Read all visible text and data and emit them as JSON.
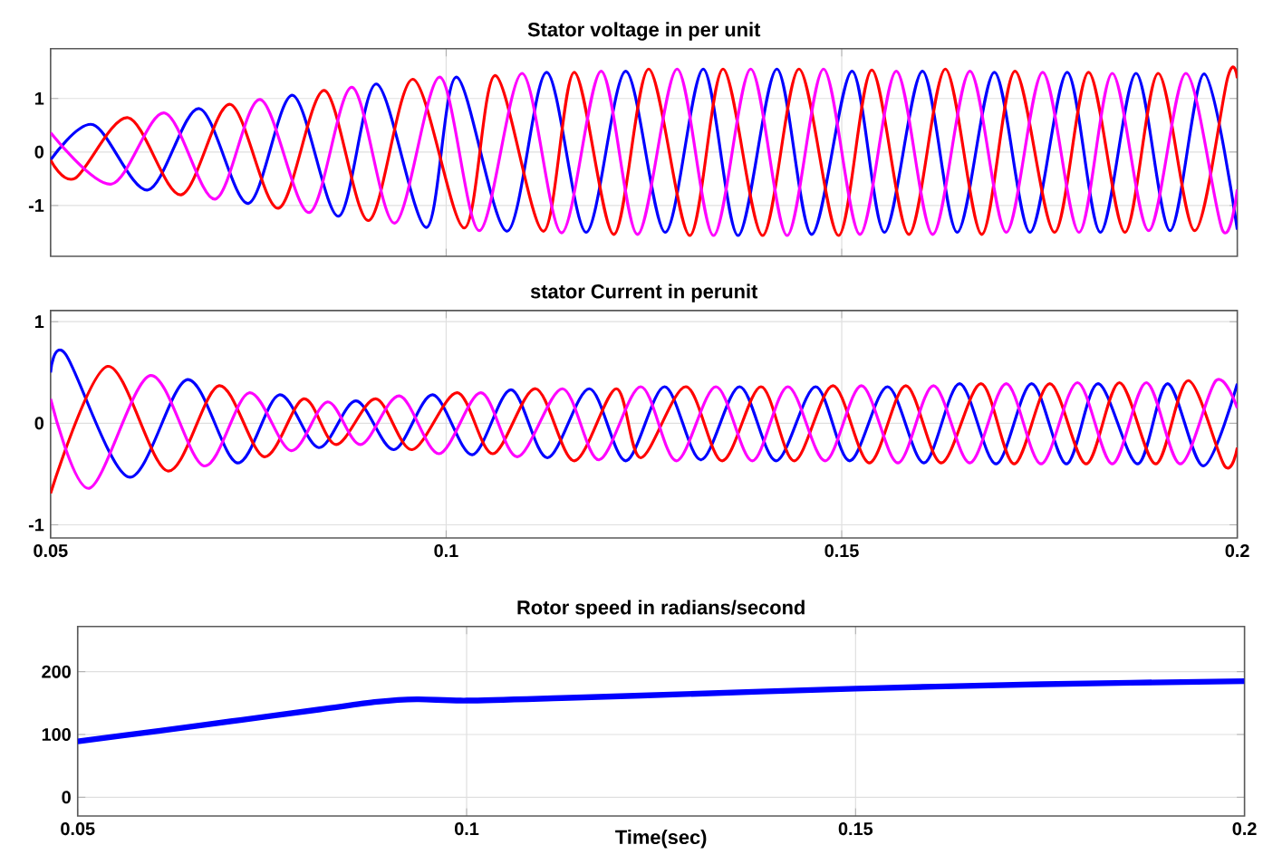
{
  "chart_data": [
    {
      "type": "line",
      "title": "Stator voltage in per unit",
      "xlim": [
        0.05,
        0.2
      ],
      "ylim": [
        -1.95,
        1.93
      ],
      "xticks": [
        0.05,
        0.1,
        0.15,
        0.2
      ],
      "yticks": [
        -1,
        0,
        1
      ],
      "grid": true,
      "tick_labels": "y",
      "series": [
        {
          "color": "#0000ff",
          "x": [
            0.05,
            0.0554,
            0.0623,
            0.0688,
            0.075,
            0.0806,
            0.0864,
            0.0912,
            0.0975,
            0.1013,
            0.1077,
            0.1127,
            0.1177,
            0.1227,
            0.1277,
            0.1325,
            0.1369,
            0.1418,
            0.1462,
            0.1513,
            0.1554,
            0.1602,
            0.1646,
            0.1693,
            0.1738,
            0.1785,
            0.1827,
            0.1872,
            0.1915,
            0.1958,
            0.2
          ],
          "values": [
            -0.15,
            0.51,
            -0.71,
            0.81,
            -0.96,
            1.06,
            -1.2,
            1.27,
            -1.41,
            1.4,
            -1.48,
            1.49,
            -1.5,
            1.51,
            -1.5,
            1.55,
            -1.56,
            1.55,
            -1.54,
            1.51,
            -1.5,
            1.51,
            -1.5,
            1.49,
            -1.5,
            1.49,
            -1.5,
            1.47,
            -1.47,
            1.46,
            -1.45
          ]
        },
        {
          "color": "#ff0000",
          "x": [
            0.05,
            0.0531,
            0.0598,
            0.0665,
            0.0727,
            0.0788,
            0.0846,
            0.0902,
            0.0958,
            0.1023,
            0.1062,
            0.1123,
            0.1162,
            0.1212,
            0.1256,
            0.1308,
            0.135,
            0.14,
            0.1446,
            0.1496,
            0.1538,
            0.1585,
            0.1631,
            0.1677,
            0.1719,
            0.1769,
            0.1812,
            0.1858,
            0.19,
            0.1946,
            0.1988,
            0.2
          ],
          "values": [
            -0.15,
            -0.49,
            0.64,
            -0.8,
            0.89,
            -1.05,
            1.15,
            -1.28,
            1.36,
            -1.42,
            1.43,
            -1.48,
            1.49,
            -1.54,
            1.55,
            -1.56,
            1.55,
            -1.56,
            1.55,
            -1.56,
            1.53,
            -1.54,
            1.55,
            -1.54,
            1.51,
            -1.5,
            1.49,
            -1.5,
            1.47,
            -1.47,
            1.4,
            1.38
          ]
        },
        {
          "color": "#ff00ff",
          "x": [
            0.05,
            0.0577,
            0.0644,
            0.0708,
            0.0765,
            0.0827,
            0.0881,
            0.0935,
            0.0992,
            0.1042,
            0.1096,
            0.1146,
            0.1196,
            0.1242,
            0.1292,
            0.1338,
            0.1385,
            0.1431,
            0.1477,
            0.1523,
            0.1569,
            0.1615,
            0.1662,
            0.1708,
            0.1754,
            0.18,
            0.1842,
            0.1888,
            0.1935,
            0.1981,
            0.2
          ],
          "values": [
            0.36,
            -0.6,
            0.73,
            -0.88,
            0.98,
            -1.13,
            1.21,
            -1.33,
            1.4,
            -1.47,
            1.47,
            -1.51,
            1.51,
            -1.54,
            1.55,
            -1.56,
            1.55,
            -1.56,
            1.55,
            -1.54,
            1.51,
            -1.54,
            1.51,
            -1.5,
            1.49,
            -1.5,
            1.47,
            -1.47,
            1.47,
            -1.45,
            -0.7
          ]
        }
      ]
    },
    {
      "type": "line",
      "title": "stator Current in perunit",
      "xlim": [
        0.05,
        0.2
      ],
      "ylim": [
        -1.13,
        1.11
      ],
      "xticks": [
        0.05,
        0.1,
        0.15,
        0.2
      ],
      "yticks": [
        -1,
        0,
        1
      ],
      "grid": true,
      "series": [
        {
          "color": "#0000ff",
          "x": [
            0.05,
            0.0519,
            0.0599,
            0.0673,
            0.0736,
            0.0789,
            0.0839,
            0.0886,
            0.0934,
            0.0983,
            0.1033,
            0.1082,
            0.1128,
            0.1181,
            0.1227,
            0.1276,
            0.1322,
            0.1371,
            0.1417,
            0.1467,
            0.151,
            0.1558,
            0.1604,
            0.1649,
            0.1695,
            0.174,
            0.1784,
            0.1824,
            0.1874,
            0.1912,
            0.1957,
            0.2
          ],
          "values": [
            0.5,
            0.68,
            -0.53,
            0.43,
            -0.39,
            0.28,
            -0.24,
            0.22,
            -0.26,
            0.28,
            -0.31,
            0.33,
            -0.34,
            0.34,
            -0.37,
            0.36,
            -0.36,
            0.36,
            -0.37,
            0.36,
            -0.37,
            0.36,
            -0.39,
            0.39,
            -0.4,
            0.39,
            -0.4,
            0.39,
            -0.4,
            0.39,
            -0.42,
            0.39
          ]
        },
        {
          "color": "#ff0000",
          "x": [
            0.05,
            0.0572,
            0.0648,
            0.0713,
            0.077,
            0.082,
            0.0861,
            0.0911,
            0.0957,
            0.1014,
            0.1059,
            0.1113,
            0.1162,
            0.1215,
            0.1246,
            0.1303,
            0.1349,
            0.1398,
            0.144,
            0.1489,
            0.1535,
            0.1581,
            0.1626,
            0.1676,
            0.1718,
            0.1763,
            0.1809,
            0.1851,
            0.1897,
            0.1938,
            0.1984,
            0.2
          ],
          "values": [
            -0.69,
            0.56,
            -0.47,
            0.37,
            -0.33,
            0.24,
            -0.21,
            0.24,
            -0.26,
            0.3,
            -0.3,
            0.34,
            -0.37,
            0.34,
            -0.34,
            0.36,
            -0.37,
            0.36,
            -0.37,
            0.37,
            -0.39,
            0.37,
            -0.39,
            0.39,
            -0.4,
            0.39,
            -0.4,
            0.4,
            -0.4,
            0.42,
            -0.42,
            -0.24
          ]
        },
        {
          "color": "#ff00ff",
          "x": [
            0.05,
            0.0549,
            0.0626,
            0.0694,
            0.0751,
            0.0804,
            0.085,
            0.0892,
            0.0941,
            0.0991,
            0.1044,
            0.109,
            0.1147,
            0.1193,
            0.1246,
            0.1291,
            0.1341,
            0.1387,
            0.1432,
            0.1479,
            0.1525,
            0.1571,
            0.1616,
            0.1662,
            0.1708,
            0.1752,
            0.1798,
            0.1842,
            0.1885,
            0.1928,
            0.1973,
            0.2
          ],
          "values": [
            0.24,
            -0.64,
            0.47,
            -0.42,
            0.3,
            -0.27,
            0.21,
            -0.21,
            0.27,
            -0.3,
            0.3,
            -0.33,
            0.34,
            -0.36,
            0.36,
            -0.37,
            0.36,
            -0.37,
            0.36,
            -0.37,
            0.37,
            -0.39,
            0.37,
            -0.39,
            0.39,
            -0.4,
            0.4,
            -0.4,
            0.4,
            -0.4,
            0.42,
            0.15
          ]
        }
      ]
    },
    {
      "type": "line",
      "title": "Rotor speed in radians/second",
      "xlabel": "Time(sec)",
      "xlim": [
        0.05,
        0.2
      ],
      "ylim": [
        -30,
        272
      ],
      "xticks": [
        0.05,
        0.1,
        0.15,
        0.2
      ],
      "yticks": [
        0,
        100,
        200
      ],
      "grid": true,
      "series": [
        {
          "color": "#0000ff",
          "x": [
            0.05,
            0.0606,
            0.0709,
            0.0812,
            0.0885,
            0.0936,
            0.1,
            0.1122,
            0.1225,
            0.15,
            0.174,
            0.2
          ],
          "values": [
            89,
            106,
            123,
            140,
            152,
            156,
            154,
            158,
            162,
            173,
            180,
            185
          ]
        }
      ]
    }
  ]
}
